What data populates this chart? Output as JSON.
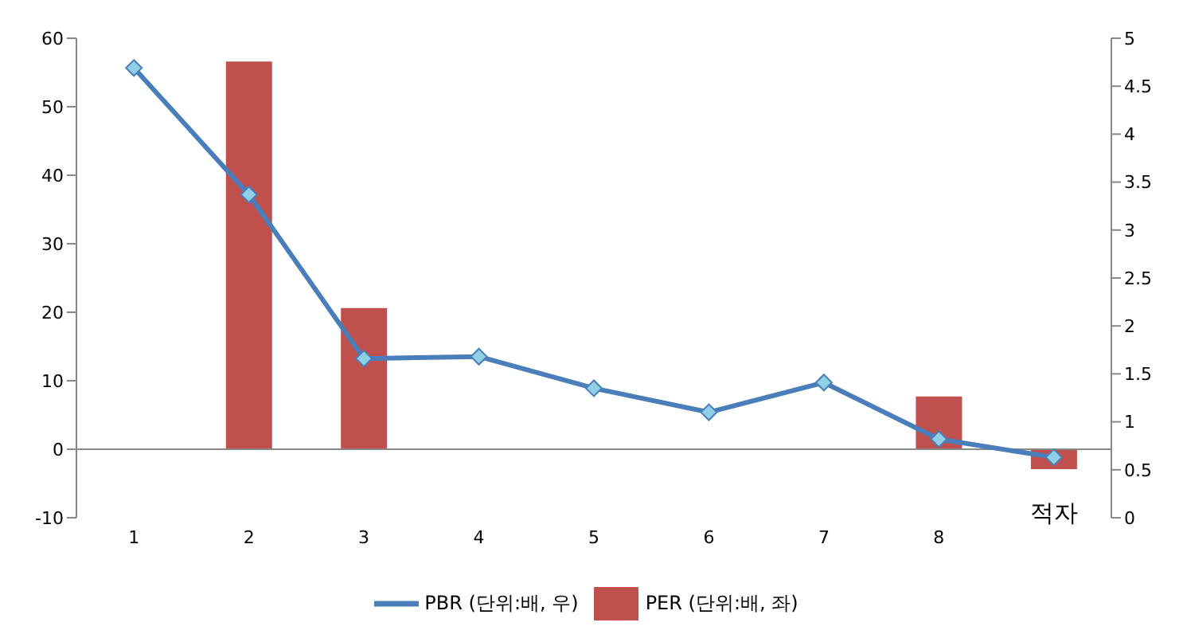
{
  "chart_data": {
    "type": "bar",
    "categories": [
      "1",
      "2",
      "3",
      "4",
      "5",
      "6",
      "7",
      "8",
      null
    ],
    "series": [
      {
        "name": "PER (단위:배, 좌)",
        "color": "#c0504d",
        "values": [
          null,
          56.6,
          20.6,
          null,
          null,
          null,
          null,
          7.7,
          -2.9
        ]
      },
      {
        "name": "PBR (단위:배, 우)",
        "type": "line",
        "axis": "y2",
        "color": "#4a7ebb",
        "marker": "diamond",
        "values": [
          4.69,
          3.37,
          1.66,
          1.68,
          1.35,
          1.1,
          1.41,
          0.82,
          0.63
        ]
      }
    ],
    "ylim": [
      -10,
      60
    ],
    "yticks": [
      -10,
      0,
      10,
      20,
      30,
      40,
      50,
      60
    ],
    "y2lim": [
      0,
      5
    ],
    "y2ticks": [
      0,
      0.5,
      1,
      1.5,
      2,
      2.5,
      3,
      3.5,
      4,
      4.5,
      5
    ],
    "annotations": [
      {
        "text": "적자",
        "y": -2.9
      }
    ],
    "legend": "bottom"
  }
}
